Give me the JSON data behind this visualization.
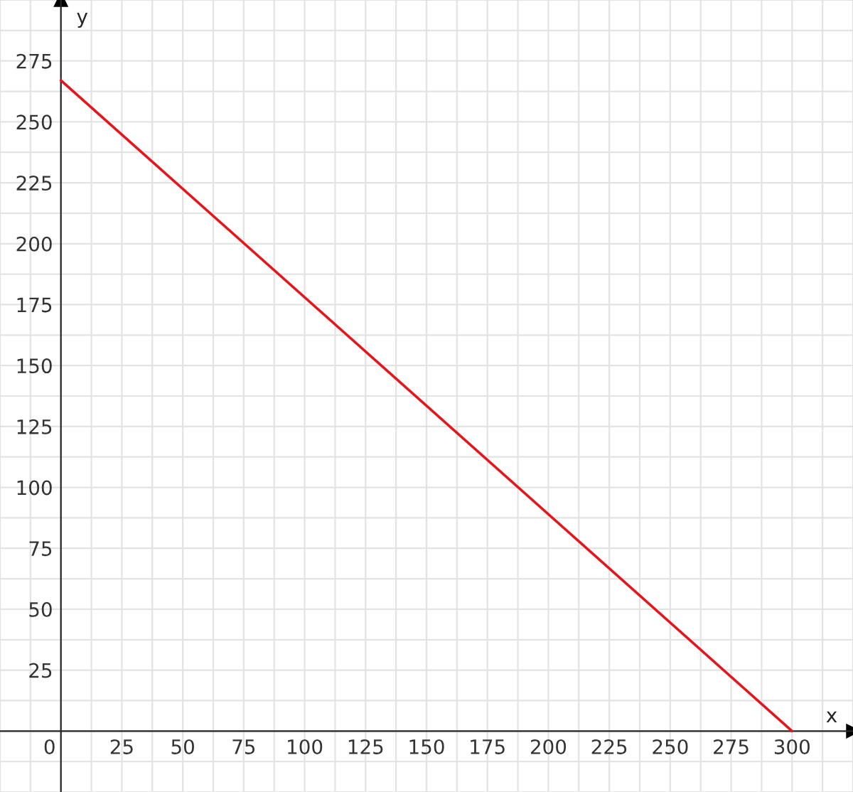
{
  "chart_data": {
    "type": "line",
    "xlabel": "x",
    "ylabel": "y",
    "x": [
      0,
      300
    ],
    "series": [
      {
        "color": "#e8141b",
        "values": [
          267,
          0
        ]
      }
    ],
    "xlim": [
      -25,
      325
    ],
    "ylim": [
      -25,
      300
    ],
    "xticks": [
      0,
      25,
      50,
      75,
      100,
      125,
      150,
      175,
      200,
      225,
      250,
      275,
      300
    ],
    "yticks": [
      25,
      50,
      75,
      100,
      125,
      150,
      175,
      200,
      225,
      250,
      275
    ],
    "grid": true,
    "marker": "none",
    "line_style": "solid"
  }
}
